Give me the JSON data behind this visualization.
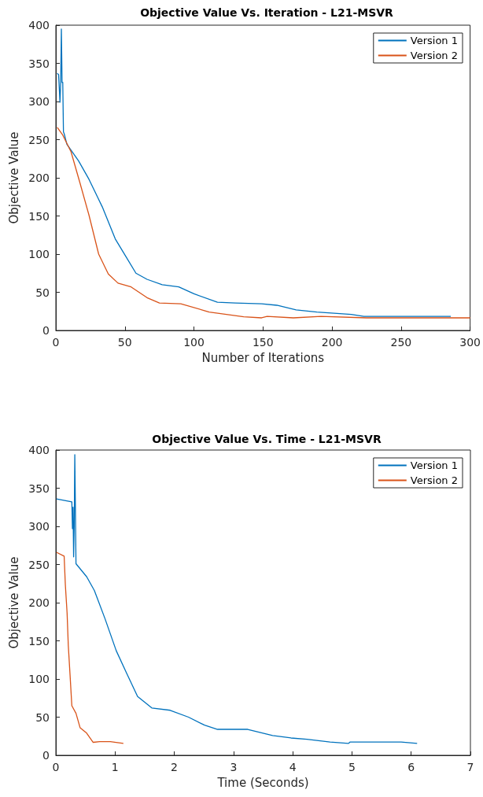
{
  "chart_data": [
    {
      "type": "line",
      "title": "Objective Value Vs. Iteration - L21-MSVR",
      "xlabel": "Number of Iterations",
      "ylabel": "Objective Value",
      "xlim": [
        0,
        300
      ],
      "xticks": [
        0,
        50,
        100,
        150,
        200,
        250,
        300
      ],
      "ylim": [
        0,
        400
      ],
      "yticks": [
        0,
        50,
        100,
        150,
        200,
        250,
        300,
        350,
        400
      ],
      "grid": false,
      "legend": "top right",
      "marker": "none",
      "line_style": "solid",
      "series": [
        {
          "name": "Version 1",
          "color": "#0072bd",
          "x": [
            1,
            2,
            3,
            3.5,
            4,
            4.5,
            5,
            5.5,
            6,
            8,
            16.5,
            24,
            33.6,
            43,
            51,
            58,
            66,
            77,
            89,
            100,
            117,
            130,
            149,
            160,
            174,
            189,
            214,
            223,
            250,
            286
          ],
          "values": [
            337,
            335,
            299,
            325,
            395,
            325,
            325,
            260,
            258,
            244,
            222,
            198,
            162,
            120,
            96,
            75,
            67,
            60,
            57,
            48,
            37,
            36,
            35,
            33,
            27,
            24,
            21,
            18.5,
            18.5,
            18.5
          ]
        },
        {
          "name": "Version 2",
          "color": "#d95319",
          "x": [
            1,
            5,
            11,
            17.5,
            24,
            31,
            38,
            45,
            54.5,
            66,
            75,
            90.5,
            107.6,
            111,
            136,
            149,
            153,
            172,
            192,
            225,
            260,
            300
          ],
          "values": [
            266,
            256,
            234,
            193,
            151,
            100,
            74,
            62,
            57,
            43,
            36,
            35,
            26,
            24,
            18,
            16.5,
            18.5,
            16.5,
            18.5,
            16.5,
            16.5,
            16.5
          ]
        }
      ]
    },
    {
      "type": "line",
      "title": "Objective Value Vs. Time - L21-MSVR",
      "xlabel": "Time (Seconds)",
      "ylabel": "Objective Value",
      "xlim": [
        0,
        7
      ],
      "xticks": [
        0,
        1,
        2,
        3,
        4,
        5,
        6,
        7
      ],
      "ylim": [
        0,
        400
      ],
      "yticks": [
        0,
        50,
        100,
        150,
        200,
        250,
        300,
        350,
        400
      ],
      "grid": false,
      "legend": "top right",
      "marker": "none",
      "line_style": "solid",
      "series": [
        {
          "name": "Version 1",
          "color": "#0072bd",
          "x": [
            0.01,
            0.27,
            0.28,
            0.29,
            0.3,
            0.31,
            0.32,
            0.33,
            0.34,
            0.52,
            0.65,
            0.83,
            1.02,
            1.18,
            1.38,
            1.62,
            1.93,
            2.24,
            2.51,
            2.73,
            3.24,
            3.66,
            3.97,
            4.24,
            4.63,
            4.94,
            4.97,
            5.83,
            6.1
          ],
          "values": [
            336,
            332,
            297,
            325,
            260,
            300,
            394,
            325,
            251,
            234,
            216,
            179,
            137,
            110,
            77,
            62,
            59,
            50,
            39.5,
            34,
            34,
            26,
            22.7,
            21,
            17.5,
            15.5,
            17.5,
            17.5,
            15.5
          ]
        },
        {
          "name": "Version 2",
          "color": "#d95319",
          "x": [
            0.01,
            0.14,
            0.16,
            0.19,
            0.21,
            0.24,
            0.27,
            0.34,
            0.41,
            0.52,
            0.63,
            0.74,
            0.92,
            1.14
          ],
          "values": [
            266,
            261,
            224,
            186,
            144,
            105,
            65,
            55,
            36,
            29,
            17,
            18,
            18,
            15.5
          ]
        }
      ]
    }
  ]
}
